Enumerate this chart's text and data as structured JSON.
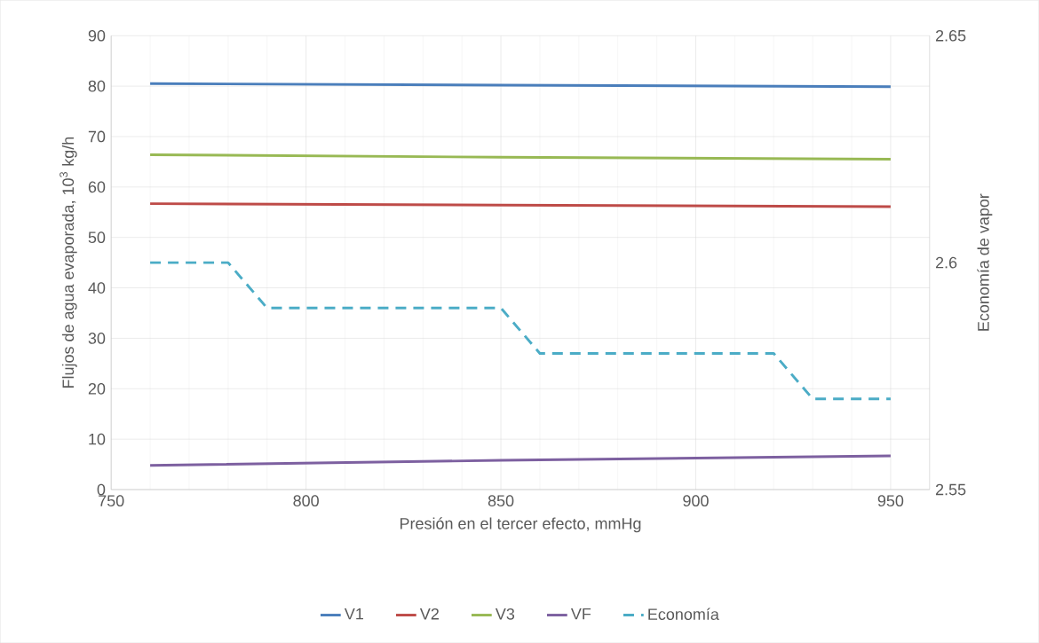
{
  "chart_data": {
    "type": "line",
    "xlabel": "Presión en el tercer efecto, mmHg",
    "ylabel": "Flujos de agua evaporada, 10$^{3}$ kg/h",
    "y2label": "Economía de vapor",
    "xlim": [
      750,
      960
    ],
    "xticks": [
      750,
      800,
      850,
      900,
      950
    ],
    "ylim": [
      0,
      90
    ],
    "yticks": [
      0,
      10,
      20,
      30,
      40,
      50,
      60,
      70,
      80,
      90
    ],
    "y2lim": [
      2.55,
      2.65
    ],
    "y2ticks": [
      2.55,
      2.6,
      2.65
    ],
    "grid": true,
    "legend": "bottom",
    "line_style": "solid",
    "series": [
      {
        "name": "V1",
        "color": "#4a7ebb",
        "x": [
          760,
          850,
          950
        ],
        "values": [
          80.5,
          80.2,
          79.9
        ]
      },
      {
        "name": "V2",
        "color": "#be4b48",
        "x": [
          760,
          850,
          950
        ],
        "values": [
          56.7,
          56.4,
          56.1
        ]
      },
      {
        "name": "V3",
        "color": "#98b954",
        "x": [
          760,
          850,
          950
        ],
        "values": [
          66.4,
          65.9,
          65.5
        ]
      },
      {
        "name": "VF",
        "color": "#7d60a0",
        "x": [
          760,
          850,
          950
        ],
        "values": [
          4.8,
          5.8,
          6.7
        ]
      },
      {
        "name": "Economía",
        "color": "#4bacc6",
        "axis": "y2",
        "line_style": "dashed",
        "x": [
          760,
          770,
          780,
          790,
          800,
          810,
          820,
          830,
          840,
          850,
          860,
          870,
          880,
          890,
          900,
          910,
          920,
          930,
          940,
          950
        ],
        "values": [
          2.6,
          2.6,
          2.6,
          2.59,
          2.59,
          2.59,
          2.59,
          2.59,
          2.59,
          2.59,
          2.58,
          2.58,
          2.58,
          2.58,
          2.58,
          2.58,
          2.58,
          2.57,
          2.57,
          2.57
        ]
      }
    ]
  }
}
